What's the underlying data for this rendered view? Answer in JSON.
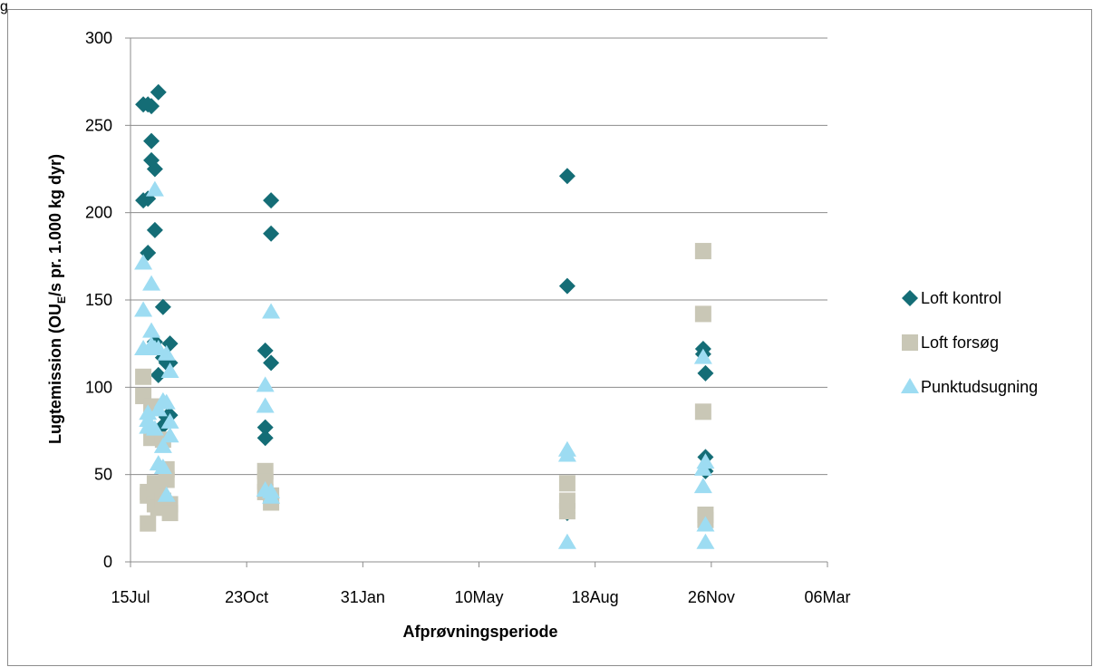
{
  "chart_data": {
    "type": "scatter",
    "title": "",
    "xlabel": "Afprøvningsperiode",
    "ylabel": {
      "main": "Lugtemission (OU",
      "sub": "E",
      "rest": "/s pr. 1.000 kg dyr)"
    },
    "x_axis": {
      "kind": "date",
      "range": [
        "2011-07-15",
        "2013-03-06"
      ],
      "ticks": [
        {
          "date": "2011-07-15",
          "label": "15Jul"
        },
        {
          "date": "2011-10-23",
          "label": "23Oct"
        },
        {
          "date": "2012-01-31",
          "label": "31Jan"
        },
        {
          "date": "2012-05-10",
          "label": "10May"
        },
        {
          "date": "2012-08-18",
          "label": "18Aug"
        },
        {
          "date": "2012-11-26",
          "label": "26Nov"
        },
        {
          "date": "2013-03-06",
          "label": "06Mar"
        }
      ]
    },
    "y_axis": {
      "range": [
        0,
        300
      ],
      "ticks": [
        0,
        50,
        100,
        150,
        200,
        250,
        300
      ],
      "grid": true
    },
    "legend_position": "right",
    "colors": {
      "loft_kontrol": "#146d76",
      "loft_forsog": "#c9c7b6",
      "punktudsugning": "#9ddcf2",
      "gridline": "#8c8c8c",
      "axis": "#8c8c8c"
    },
    "series": [
      {
        "name": "Loft kontrol",
        "marker": "diamond",
        "color_key": "loft_kontrol",
        "points": [
          {
            "x": "2011-07-26",
            "y": 262
          },
          {
            "x": "2011-07-26",
            "y": 207
          },
          {
            "x": "2011-07-30",
            "y": 262
          },
          {
            "x": "2011-07-30",
            "y": 208
          },
          {
            "x": "2011-07-30",
            "y": 177
          },
          {
            "x": "2011-08-02",
            "y": 261
          },
          {
            "x": "2011-08-02",
            "y": 241
          },
          {
            "x": "2011-08-02",
            "y": 230
          },
          {
            "x": "2011-08-05",
            "y": 225
          },
          {
            "x": "2011-08-05",
            "y": 190
          },
          {
            "x": "2011-08-05",
            "y": 126
          },
          {
            "x": "2011-08-08",
            "y": 269
          },
          {
            "x": "2011-08-08",
            "y": 107
          },
          {
            "x": "2011-08-12",
            "y": 146
          },
          {
            "x": "2011-08-12",
            "y": 117
          },
          {
            "x": "2011-08-12",
            "y": 78
          },
          {
            "x": "2011-08-15",
            "y": 114
          },
          {
            "x": "2011-08-15",
            "y": 83
          },
          {
            "x": "2011-08-18",
            "y": 125
          },
          {
            "x": "2011-08-18",
            "y": 114
          },
          {
            "x": "2011-08-18",
            "y": 84
          },
          {
            "x": "2011-11-08",
            "y": 121
          },
          {
            "x": "2011-11-08",
            "y": 77
          },
          {
            "x": "2011-11-08",
            "y": 71
          },
          {
            "x": "2011-11-13",
            "y": 207
          },
          {
            "x": "2011-11-13",
            "y": 188
          },
          {
            "x": "2011-11-13",
            "y": 114
          },
          {
            "x": "2012-07-25",
            "y": 221
          },
          {
            "x": "2012-07-25",
            "y": 158
          },
          {
            "x": "2012-07-25",
            "y": 28
          },
          {
            "x": "2012-11-19",
            "y": 122
          },
          {
            "x": "2012-11-19",
            "y": 119
          },
          {
            "x": "2012-11-21",
            "y": 108
          },
          {
            "x": "2012-11-21",
            "y": 60
          },
          {
            "x": "2012-11-21",
            "y": 52
          }
        ]
      },
      {
        "name": "Loft forsøg",
        "marker": "square",
        "color_key": "loft_forsog",
        "points": [
          {
            "x": "2011-07-26",
            "y": 106
          },
          {
            "x": "2011-07-26",
            "y": 95
          },
          {
            "x": "2011-07-30",
            "y": 40
          },
          {
            "x": "2011-07-30",
            "y": 38
          },
          {
            "x": "2011-07-30",
            "y": 22
          },
          {
            "x": "2011-08-02",
            "y": 89
          },
          {
            "x": "2011-08-02",
            "y": 71
          },
          {
            "x": "2011-08-05",
            "y": 45
          },
          {
            "x": "2011-08-05",
            "y": 33
          },
          {
            "x": "2011-08-08",
            "y": 40
          },
          {
            "x": "2011-08-08",
            "y": 31
          },
          {
            "x": "2011-08-12",
            "y": 70
          },
          {
            "x": "2011-08-12",
            "y": 35
          },
          {
            "x": "2011-08-15",
            "y": 53
          },
          {
            "x": "2011-08-15",
            "y": 47
          },
          {
            "x": "2011-08-18",
            "y": 33
          },
          {
            "x": "2011-08-18",
            "y": 28
          },
          {
            "x": "2011-11-08",
            "y": 52
          },
          {
            "x": "2011-11-08",
            "y": 46
          },
          {
            "x": "2011-11-08",
            "y": 40
          },
          {
            "x": "2011-11-13",
            "y": 38
          },
          {
            "x": "2011-11-13",
            "y": 34
          },
          {
            "x": "2012-07-25",
            "y": 45
          },
          {
            "x": "2012-07-25",
            "y": 35
          },
          {
            "x": "2012-07-25",
            "y": 29
          },
          {
            "x": "2012-11-19",
            "y": 178
          },
          {
            "x": "2012-11-19",
            "y": 142
          },
          {
            "x": "2012-11-19",
            "y": 86
          },
          {
            "x": "2012-11-21",
            "y": 27
          },
          {
            "x": "2012-11-21",
            "y": 24
          }
        ]
      },
      {
        "name": "Punktudsugning",
        "marker": "triangle",
        "color_key": "punktudsugning",
        "points": [
          {
            "x": "2011-07-26",
            "y": 171
          },
          {
            "x": "2011-07-26",
            "y": 144
          },
          {
            "x": "2011-07-26",
            "y": 122
          },
          {
            "x": "2011-07-30",
            "y": 85
          },
          {
            "x": "2011-07-30",
            "y": 81
          },
          {
            "x": "2011-07-30",
            "y": 77
          },
          {
            "x": "2011-08-02",
            "y": 159
          },
          {
            "x": "2011-08-02",
            "y": 132
          },
          {
            "x": "2011-08-02",
            "y": 124
          },
          {
            "x": "2011-08-05",
            "y": 213
          },
          {
            "x": "2011-08-05",
            "y": 122
          },
          {
            "x": "2011-08-05",
            "y": 76
          },
          {
            "x": "2011-08-08",
            "y": 122
          },
          {
            "x": "2011-08-08",
            "y": 87
          },
          {
            "x": "2011-08-08",
            "y": 56
          },
          {
            "x": "2011-08-12",
            "y": 92
          },
          {
            "x": "2011-08-12",
            "y": 66
          },
          {
            "x": "2011-08-12",
            "y": 54
          },
          {
            "x": "2011-08-15",
            "y": 119
          },
          {
            "x": "2011-08-15",
            "y": 91
          },
          {
            "x": "2011-08-15",
            "y": 38
          },
          {
            "x": "2011-08-18",
            "y": 109
          },
          {
            "x": "2011-08-18",
            "y": 80
          },
          {
            "x": "2011-08-18",
            "y": 72
          },
          {
            "x": "2011-11-08",
            "y": 101
          },
          {
            "x": "2011-11-08",
            "y": 89
          },
          {
            "x": "2011-11-08",
            "y": 41
          },
          {
            "x": "2011-11-13",
            "y": 143
          },
          {
            "x": "2011-11-13",
            "y": 40
          },
          {
            "x": "2011-11-13",
            "y": 37
          },
          {
            "x": "2012-07-25",
            "y": 64
          },
          {
            "x": "2012-07-25",
            "y": 61
          },
          {
            "x": "2012-07-25",
            "y": 11
          },
          {
            "x": "2012-11-19",
            "y": 117
          },
          {
            "x": "2012-11-19",
            "y": 53
          },
          {
            "x": "2012-11-19",
            "y": 43
          },
          {
            "x": "2012-11-21",
            "y": 57
          },
          {
            "x": "2012-11-21",
            "y": 21
          },
          {
            "x": "2012-11-21",
            "y": 11
          }
        ]
      }
    ]
  },
  "page": {
    "corner_fragment": "g"
  }
}
